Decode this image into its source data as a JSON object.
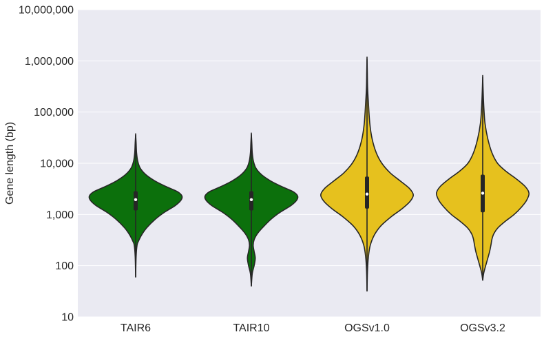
{
  "chart_data": {
    "type": "violin",
    "ylabel": "Gene length (bp)",
    "yscale": "log",
    "ylim": [
      10,
      10000000
    ],
    "yticks": [
      {
        "value": 10,
        "label": "10"
      },
      {
        "value": 100,
        "label": "100"
      },
      {
        "value": 1000,
        "label": "1,000"
      },
      {
        "value": 10000,
        "label": "10,000"
      },
      {
        "value": 100000,
        "label": "100,000"
      },
      {
        "value": 1000000,
        "label": "1,000,000"
      },
      {
        "value": 10000000,
        "label": "10,000,000"
      }
    ],
    "categories": [
      "TAIR6",
      "TAIR10",
      "OGSv1.0",
      "OGSv3.2"
    ],
    "grid": true,
    "background": "#EAEAF2",
    "series": [
      {
        "category": "TAIR6",
        "color": "#0C700C",
        "min": 60,
        "q1": 1200,
        "median": 1950,
        "q3": 2850,
        "max": 36000,
        "profile": [
          {
            "y": 60,
            "w": 0.0
          },
          {
            "y": 150,
            "w": 0.01
          },
          {
            "y": 250,
            "w": 0.03
          },
          {
            "y": 300,
            "w": 0.06
          },
          {
            "y": 400,
            "w": 0.13
          },
          {
            "y": 550,
            "w": 0.24
          },
          {
            "y": 800,
            "w": 0.42
          },
          {
            "y": 1100,
            "w": 0.62
          },
          {
            "y": 1500,
            "w": 0.86
          },
          {
            "y": 1900,
            "w": 0.98
          },
          {
            "y": 2300,
            "w": 1.0
          },
          {
            "y": 2800,
            "w": 0.9
          },
          {
            "y": 3500,
            "w": 0.66
          },
          {
            "y": 4500,
            "w": 0.42
          },
          {
            "y": 6000,
            "w": 0.22
          },
          {
            "y": 8000,
            "w": 0.1
          },
          {
            "y": 11000,
            "w": 0.045
          },
          {
            "y": 16000,
            "w": 0.02
          },
          {
            "y": 25000,
            "w": 0.01
          },
          {
            "y": 36000,
            "w": 0.0
          }
        ]
      },
      {
        "category": "TAIR10",
        "color": "#0C700C",
        "min": 40,
        "q1": 1200,
        "median": 1950,
        "q3": 2850,
        "max": 37000,
        "profile": [
          {
            "y": 40,
            "w": 0.0
          },
          {
            "y": 70,
            "w": 0.02
          },
          {
            "y": 100,
            "w": 0.06
          },
          {
            "y": 140,
            "w": 0.085
          },
          {
            "y": 190,
            "w": 0.06
          },
          {
            "y": 250,
            "w": 0.04
          },
          {
            "y": 320,
            "w": 0.06
          },
          {
            "y": 420,
            "w": 0.13
          },
          {
            "y": 550,
            "w": 0.24
          },
          {
            "y": 800,
            "w": 0.42
          },
          {
            "y": 1100,
            "w": 0.62
          },
          {
            "y": 1500,
            "w": 0.86
          },
          {
            "y": 1900,
            "w": 0.98
          },
          {
            "y": 2300,
            "w": 1.0
          },
          {
            "y": 2800,
            "w": 0.9
          },
          {
            "y": 3500,
            "w": 0.66
          },
          {
            "y": 4500,
            "w": 0.42
          },
          {
            "y": 6000,
            "w": 0.22
          },
          {
            "y": 8000,
            "w": 0.1
          },
          {
            "y": 11000,
            "w": 0.045
          },
          {
            "y": 16000,
            "w": 0.02
          },
          {
            "y": 25000,
            "w": 0.01
          },
          {
            "y": 37000,
            "w": 0.0
          }
        ]
      },
      {
        "category": "OGSv1.0",
        "color": "#E6C11E",
        "min": 32,
        "q1": 1300,
        "median": 2500,
        "q3": 5500,
        "max": 1100000,
        "profile": [
          {
            "y": 32,
            "w": 0.0
          },
          {
            "y": 80,
            "w": 0.01
          },
          {
            "y": 150,
            "w": 0.03
          },
          {
            "y": 250,
            "w": 0.07
          },
          {
            "y": 400,
            "w": 0.16
          },
          {
            "y": 600,
            "w": 0.3
          },
          {
            "y": 900,
            "w": 0.52
          },
          {
            "y": 1300,
            "w": 0.76
          },
          {
            "y": 1800,
            "w": 0.93
          },
          {
            "y": 2400,
            "w": 1.0
          },
          {
            "y": 3200,
            "w": 0.92
          },
          {
            "y": 4500,
            "w": 0.72
          },
          {
            "y": 6500,
            "w": 0.5
          },
          {
            "y": 10000,
            "w": 0.32
          },
          {
            "y": 16000,
            "w": 0.2
          },
          {
            "y": 30000,
            "w": 0.11
          },
          {
            "y": 60000,
            "w": 0.06
          },
          {
            "y": 150000,
            "w": 0.03
          },
          {
            "y": 300000,
            "w": 0.012
          },
          {
            "y": 600000,
            "w": 0.006
          },
          {
            "y": 1100000,
            "w": 0.0
          }
        ]
      },
      {
        "category": "OGSv3.2",
        "color": "#E6C11E",
        "min": 52,
        "q1": 1100,
        "median": 2600,
        "q3": 6000,
        "max": 480000,
        "profile": [
          {
            "y": 52,
            "w": 0.0
          },
          {
            "y": 70,
            "w": 0.02
          },
          {
            "y": 90,
            "w": 0.05
          },
          {
            "y": 130,
            "w": 0.1
          },
          {
            "y": 190,
            "w": 0.15
          },
          {
            "y": 260,
            "w": 0.18
          },
          {
            "y": 330,
            "w": 0.2
          },
          {
            "y": 420,
            "w": 0.24
          },
          {
            "y": 550,
            "w": 0.33
          },
          {
            "y": 750,
            "w": 0.5
          },
          {
            "y": 1000,
            "w": 0.68
          },
          {
            "y": 1400,
            "w": 0.84
          },
          {
            "y": 1900,
            "w": 0.95
          },
          {
            "y": 2600,
            "w": 1.0
          },
          {
            "y": 3500,
            "w": 0.92
          },
          {
            "y": 5000,
            "w": 0.72
          },
          {
            "y": 7000,
            "w": 0.5
          },
          {
            "y": 10000,
            "w": 0.32
          },
          {
            "y": 16000,
            "w": 0.2
          },
          {
            "y": 30000,
            "w": 0.11
          },
          {
            "y": 60000,
            "w": 0.05
          },
          {
            "y": 120000,
            "w": 0.025
          },
          {
            "y": 250000,
            "w": 0.01
          },
          {
            "y": 480000,
            "w": 0.0
          }
        ]
      }
    ]
  }
}
